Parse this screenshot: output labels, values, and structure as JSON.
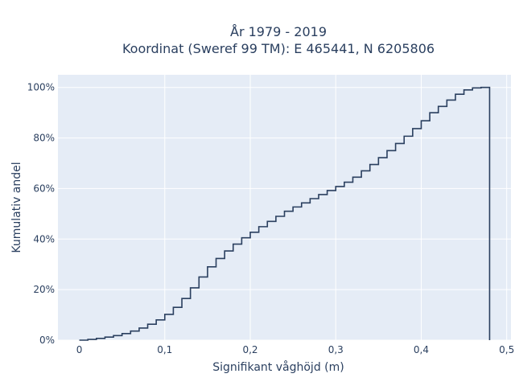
{
  "chart_data": {
    "type": "line",
    "line_shape": "step",
    "title_lines": [
      "År 1979 - 2019",
      "Koordinat (Sweref 99 TM): E 465441, N 6205806"
    ],
    "xlabel": "Signifikant våghöjd (m)",
    "ylabel": "Kumulativ andel",
    "xlim": [
      -0.025,
      0.505
    ],
    "ylim": [
      0,
      1.05
    ],
    "x_ticks": [
      0,
      0.1,
      0.2,
      0.3,
      0.4,
      0.5
    ],
    "x_tick_labels": [
      "0",
      "0,1",
      "0,2",
      "0,3",
      "0,4",
      "0,5"
    ],
    "y_ticks": [
      0,
      0.2,
      0.4,
      0.6,
      0.8,
      1.0
    ],
    "y_tick_labels": [
      "0%",
      "20%",
      "40%",
      "60%",
      "80%",
      "100%"
    ],
    "grid": true,
    "plot_background": "#e5ecf6",
    "grid_color": "#ffffff",
    "line_color": "#2a3f5f",
    "x": [
      0,
      0.01,
      0.02,
      0.03,
      0.04,
      0.05,
      0.06,
      0.07,
      0.08,
      0.09,
      0.1,
      0.11,
      0.12,
      0.13,
      0.14,
      0.15,
      0.16,
      0.17,
      0.18,
      0.19,
      0.2,
      0.21,
      0.22,
      0.23,
      0.24,
      0.25,
      0.26,
      0.27,
      0.28,
      0.29,
      0.3,
      0.31,
      0.32,
      0.33,
      0.34,
      0.35,
      0.36,
      0.37,
      0.38,
      0.39,
      0.4,
      0.41,
      0.42,
      0.43,
      0.44,
      0.45,
      0.46,
      0.47,
      0.48
    ],
    "y": [
      0.0,
      0.003,
      0.007,
      0.012,
      0.018,
      0.026,
      0.036,
      0.048,
      0.063,
      0.08,
      0.102,
      0.13,
      0.165,
      0.207,
      0.25,
      0.29,
      0.323,
      0.353,
      0.38,
      0.405,
      0.427,
      0.449,
      0.47,
      0.49,
      0.51,
      0.527,
      0.543,
      0.56,
      0.576,
      0.592,
      0.608,
      0.625,
      0.645,
      0.67,
      0.695,
      0.722,
      0.75,
      0.778,
      0.807,
      0.837,
      0.868,
      0.9,
      0.925,
      0.95,
      0.973,
      0.99,
      0.998,
      1.0,
      0.0
    ]
  }
}
